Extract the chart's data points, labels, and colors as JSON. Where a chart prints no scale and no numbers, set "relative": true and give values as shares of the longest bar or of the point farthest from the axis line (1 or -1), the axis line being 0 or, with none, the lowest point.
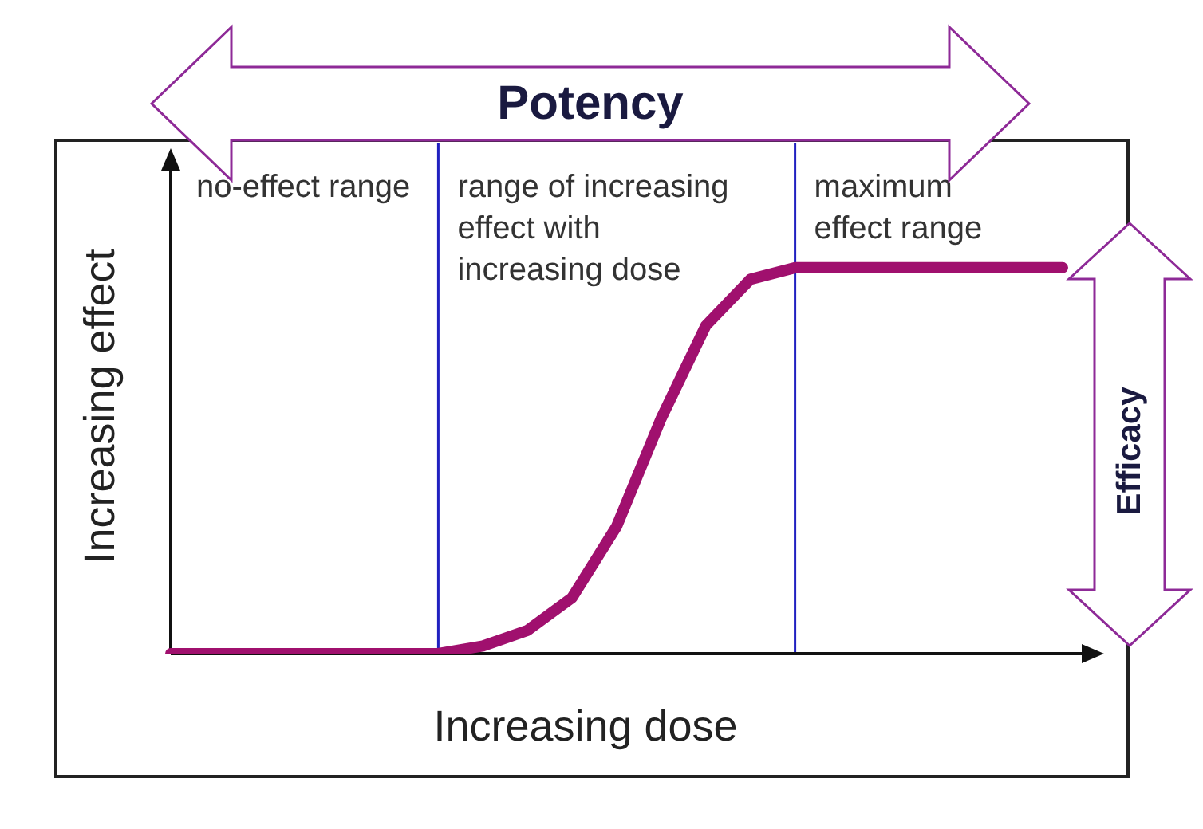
{
  "chart_data": {
    "type": "line",
    "relative": true,
    "xlabel": "Increasing dose",
    "ylabel": "Increasing effect",
    "legend": false,
    "marker": "none",
    "line_style": "solid",
    "categories": [
      null,
      null,
      null,
      null,
      null,
      null,
      null,
      null,
      null,
      null,
      null,
      null,
      null,
      null,
      null,
      null,
      null,
      null,
      null,
      null,
      null
    ],
    "series": [
      {
        "color": "#a0106e",
        "values": [
          0,
          0,
          0,
          0,
          0,
          0,
          0,
          0.02,
          0.06,
          0.145,
          0.33,
          0.61,
          0.85,
          0.97,
          1,
          1,
          1,
          1,
          1,
          1,
          1
        ]
      }
    ],
    "annotations": [
      "no-effect range",
      "range of increasing effect with increasing dose",
      "maximum effect range",
      "Potency",
      "Efficacy"
    ]
  }
}
